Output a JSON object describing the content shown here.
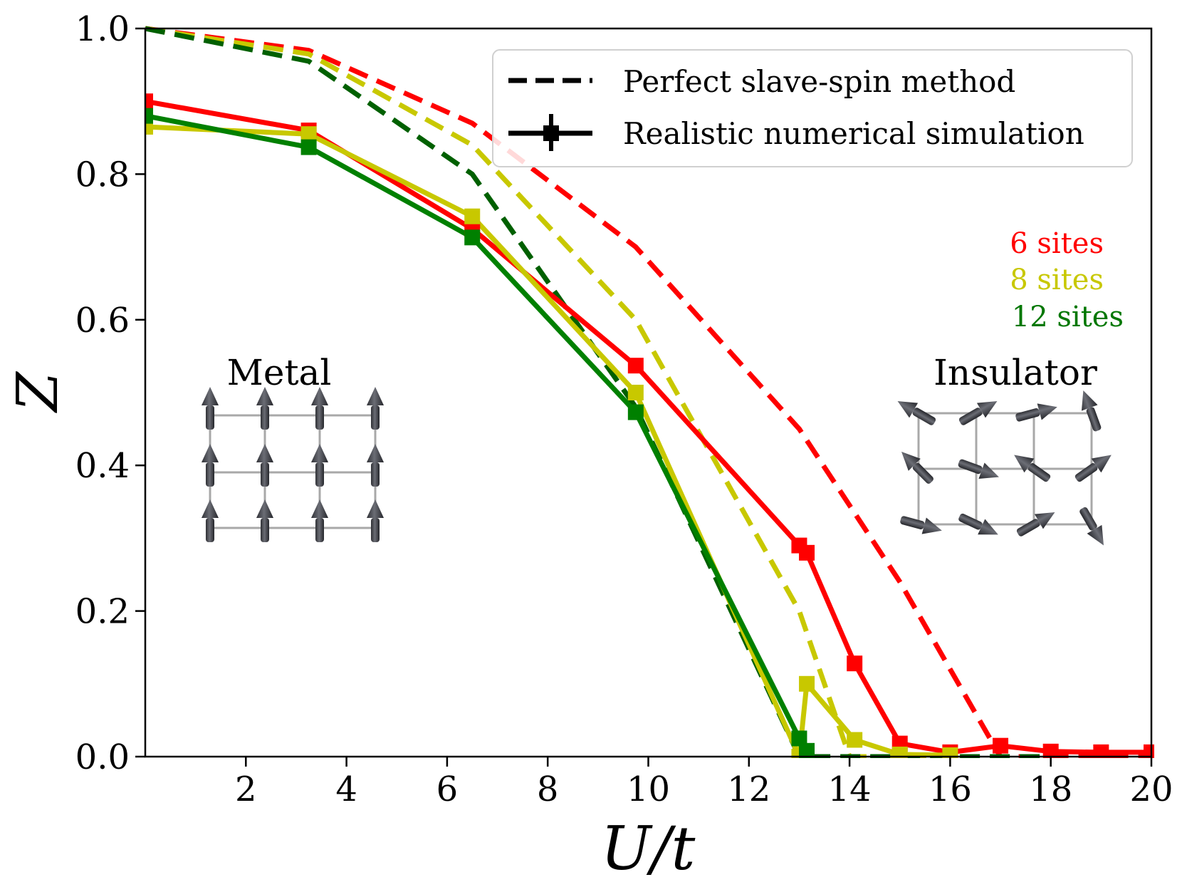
{
  "chart_data": {
    "type": "line",
    "xlabel": "U/t",
    "ylabel": "Z",
    "xlim": [
      0,
      20
    ],
    "ylim": [
      0,
      1.0
    ],
    "xticks": [
      2,
      4,
      6,
      8,
      10,
      12,
      14,
      16,
      18,
      20
    ],
    "yticks": [
      0.0,
      0.2,
      0.4,
      0.6,
      0.8,
      1.0
    ],
    "xtick_labels": [
      "2",
      "4",
      "6",
      "8",
      "10",
      "12",
      "14",
      "16",
      "18",
      "20"
    ],
    "ytick_labels": [
      "0.0",
      "0.2",
      "0.4",
      "0.6",
      "0.8",
      "1.0"
    ],
    "grid": false,
    "legend": {
      "placement": "top-right",
      "entries": [
        {
          "label": "Perfect slave-spin method",
          "style": "dashed"
        },
        {
          "label": "Realistic numerical simulation",
          "style": "solid with markers"
        }
      ]
    },
    "size_labels": [
      {
        "text": "6 sites",
        "color": "#ff0000"
      },
      {
        "text": "8 sites",
        "color": "#c8c800"
      },
      {
        "text": "12 sites",
        "color": "#007700"
      }
    ],
    "annotations": {
      "metal": "Metal",
      "insulator": "Insulator"
    },
    "series": [
      {
        "size": "6 sites",
        "style": "dashed",
        "color": "#ff0000",
        "x": [
          0,
          3.25,
          6.5,
          9.75,
          13.0,
          15.0,
          17.0,
          18.0,
          19.0,
          20.0
        ],
        "y": [
          1.0,
          0.97,
          0.87,
          0.7,
          0.45,
          0.24,
          0.0,
          0.0,
          0.0,
          0.0
        ]
      },
      {
        "size": "8 sites",
        "style": "dashed",
        "color": "#c8c800",
        "x": [
          0,
          3.25,
          6.5,
          9.75,
          13.0,
          14.0,
          15.0,
          16.0
        ],
        "y": [
          1.0,
          0.965,
          0.84,
          0.6,
          0.2,
          0.0,
          0.0,
          0.0
        ]
      },
      {
        "size": "12 sites",
        "style": "dashed",
        "color": "#006000",
        "x": [
          0,
          3.25,
          6.5,
          9.75,
          13.0,
          14.0,
          16.0,
          18.0
        ],
        "y": [
          1.0,
          0.955,
          0.8,
          0.48,
          0.0,
          0.0,
          0.0,
          0.0
        ]
      },
      {
        "size": "6 sites",
        "style": "solid",
        "color": "#ff0000",
        "x": [
          0,
          3.25,
          6.5,
          9.75,
          13.0,
          13.15,
          14.1,
          15.0,
          16.0,
          17.0,
          18.0,
          19.0,
          20.0
        ],
        "y": [
          0.9,
          0.86,
          0.725,
          0.537,
          0.29,
          0.28,
          0.128,
          0.018,
          0.006,
          0.015,
          0.007,
          0.006,
          0.006
        ]
      },
      {
        "size": "8 sites",
        "style": "solid",
        "color": "#c8c800",
        "x": [
          0,
          3.25,
          6.5,
          9.75,
          13.0,
          13.15,
          14.1,
          15.0,
          16.0
        ],
        "y": [
          0.865,
          0.855,
          0.742,
          0.5,
          0.0,
          0.1,
          0.023,
          0.003,
          0.002
        ]
      },
      {
        "size": "12 sites",
        "style": "solid",
        "color": "#008000",
        "x": [
          0,
          3.25,
          6.5,
          9.75,
          13.0,
          13.15
        ],
        "y": [
          0.88,
          0.837,
          0.713,
          0.473,
          0.025,
          0.008
        ]
      }
    ]
  }
}
